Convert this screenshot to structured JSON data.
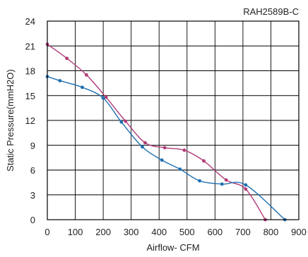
{
  "chart_data": {
    "type": "line",
    "title": "RAH2589B-C",
    "xlabel": "Airflow- CFM",
    "ylabel": "Static Pressure(mmH2O)",
    "xlim": [
      0,
      900
    ],
    "ylim": [
      0,
      24
    ],
    "x_ticks": [
      "0",
      "100",
      "200",
      "300",
      "400",
      "500",
      "600",
      "700",
      "800",
      "900"
    ],
    "y_ticks": [
      "0",
      "3",
      "6",
      "9",
      "12",
      "15",
      "18",
      "21",
      "24"
    ],
    "grid": true,
    "series": [
      {
        "color": "#b23a78",
        "points": [
          [
            0,
            21.2
          ],
          [
            70,
            19.5
          ],
          [
            140,
            17.5
          ],
          [
            210,
            14.8
          ],
          [
            280,
            11.9
          ],
          [
            350,
            9.3
          ],
          [
            420,
            8.7
          ],
          [
            490,
            8.4
          ],
          [
            560,
            7.1
          ],
          [
            640,
            4.8
          ],
          [
            710,
            3.7
          ],
          [
            780,
            0
          ]
        ]
      },
      {
        "color": "#1f6fb0",
        "points": [
          [
            0,
            17.3
          ],
          [
            45,
            16.8
          ],
          [
            125,
            16.0
          ],
          [
            200,
            14.7
          ],
          [
            265,
            11.8
          ],
          [
            340,
            8.8
          ],
          [
            410,
            7.2
          ],
          [
            475,
            6.1
          ],
          [
            545,
            4.7
          ],
          [
            625,
            4.3
          ],
          [
            710,
            4.2
          ],
          [
            850,
            0
          ]
        ]
      }
    ]
  }
}
